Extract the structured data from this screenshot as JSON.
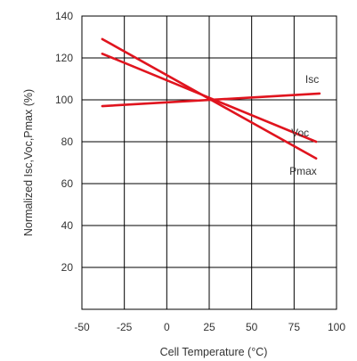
{
  "chart_data": {
    "type": "line",
    "xlabel": "Cell Temperature (°C)",
    "ylabel": "Normalized Isc,Voc,Pmax (%)",
    "xlim": [
      -50,
      100
    ],
    "ylim": [
      0,
      140
    ],
    "xticks": [
      -50,
      -25,
      0,
      25,
      50,
      75,
      100
    ],
    "yticks": [
      20,
      40,
      60,
      80,
      100,
      120,
      140
    ],
    "grid": true,
    "line_color": "#e0141e",
    "series": [
      {
        "name": "Isc",
        "x": [
          -38,
          90
        ],
        "y": [
          97,
          103
        ]
      },
      {
        "name": "Voc",
        "x": [
          -38,
          88
        ],
        "y": [
          122,
          80
        ]
      },
      {
        "name": "Pmax",
        "x": [
          -38,
          88
        ],
        "y": [
          129,
          72
        ]
      }
    ]
  }
}
